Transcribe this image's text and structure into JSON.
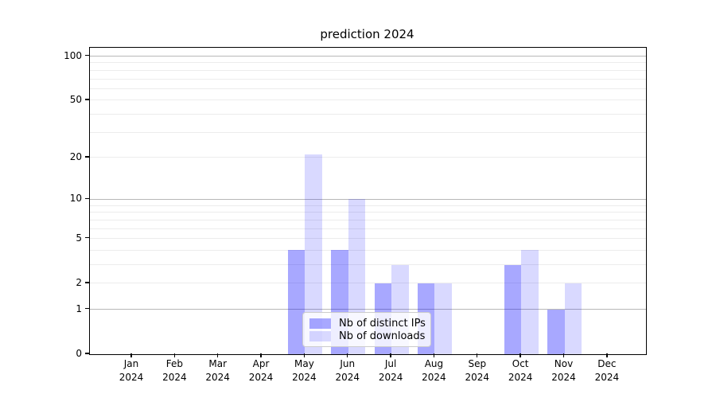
{
  "chart_data": {
    "type": "bar",
    "title": "prediction 2024",
    "categories": [
      "Jan 2024",
      "Feb 2024",
      "Mar 2024",
      "Apr 2024",
      "May 2024",
      "Jun 2024",
      "Jul 2024",
      "Aug 2024",
      "Sep 2024",
      "Oct 2024",
      "Nov 2024",
      "Dec 2024"
    ],
    "series": [
      {
        "name": "Nb of distinct IPs",
        "color": "#0000ff",
        "alpha": 0.34,
        "values": [
          0,
          0,
          0,
          0,
          4,
          4,
          2,
          2,
          0,
          3,
          1,
          0
        ]
      },
      {
        "name": "Nb of downloads",
        "color": "#0000ff",
        "alpha": 0.15,
        "values": [
          0,
          0,
          0,
          0,
          21,
          10,
          3,
          2,
          0,
          4,
          2,
          0
        ]
      }
    ],
    "xlabel": "",
    "ylabel": "",
    "yscale": "log1p",
    "ylim": [
      0,
      114
    ],
    "ytick_labels": [
      0,
      1,
      2,
      5,
      10,
      20,
      50,
      100
    ],
    "major_gridlines": [
      1,
      10,
      100
    ],
    "minor_gridlines": [
      2,
      3,
      4,
      5,
      6,
      7,
      8,
      9,
      20,
      30,
      40,
      50,
      60,
      70,
      80,
      90
    ],
    "grid": true,
    "legend_position": "lower center"
  },
  "colors": {
    "major_grid": "#b8b8b8",
    "minor_grid": "#ececec",
    "axis": "#000000",
    "legend_border": "#cccccc",
    "legend_bg": "#ffffff",
    "background": "#ffffff"
  }
}
